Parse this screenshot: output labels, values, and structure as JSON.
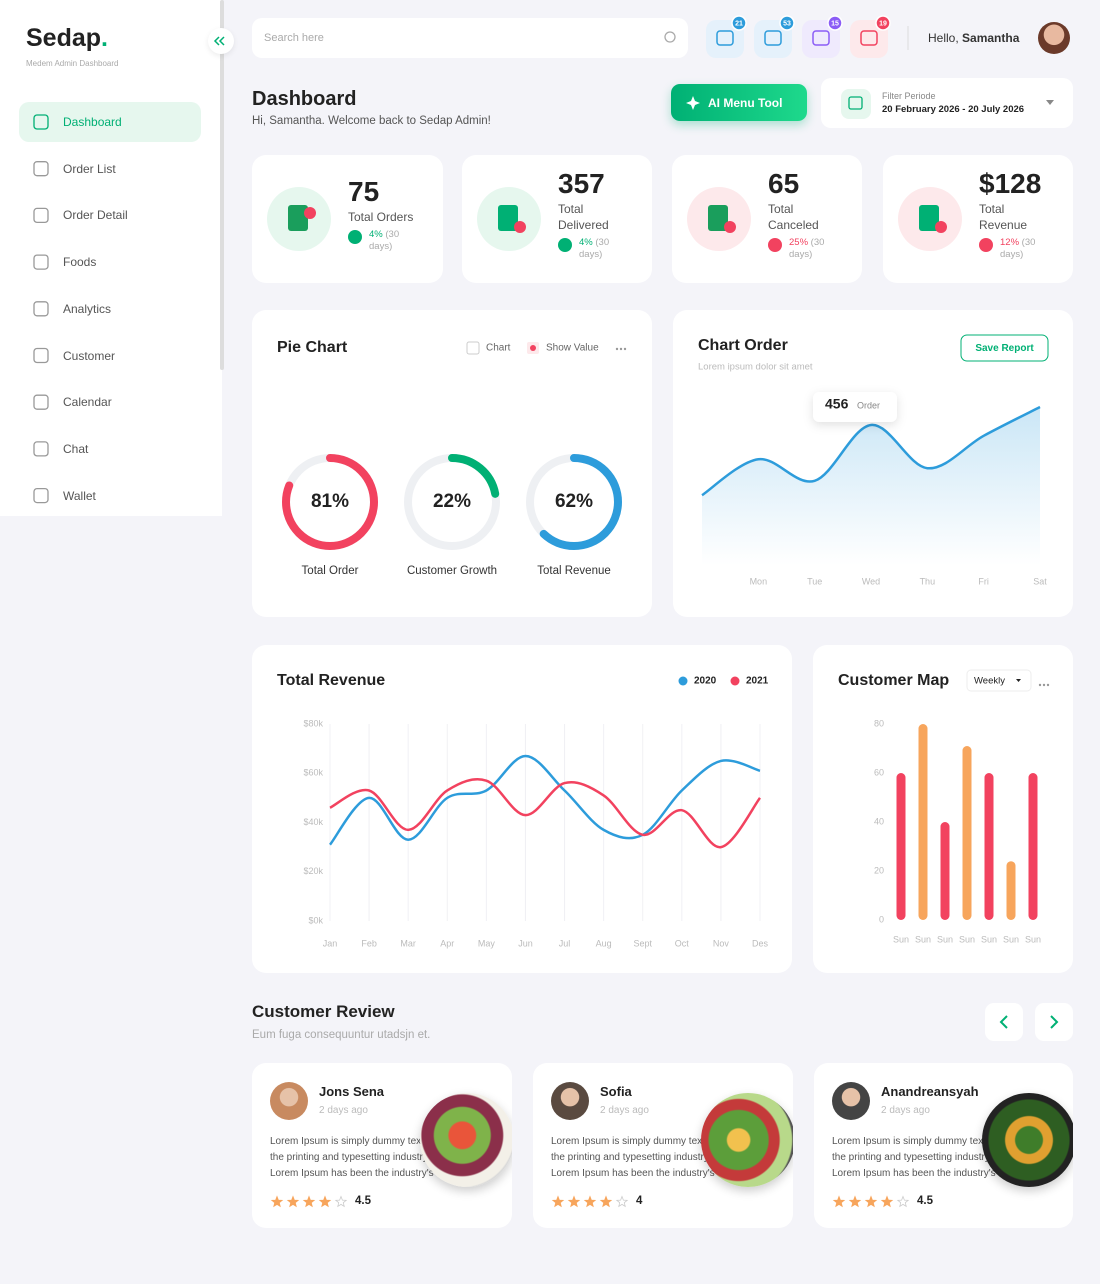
{
  "sidebar": {
    "brand": "Sedap",
    "brand_mark": ".",
    "tagline": "Medem Admin Dashboard",
    "nav": [
      "Dashboard",
      "Order List",
      "Order Detail",
      "Foods",
      "Analytics",
      "Customer",
      "Calendar",
      "Chat",
      "Wallet"
    ],
    "active": 0
  },
  "header": {
    "search_placeholder": "Search here",
    "badges": [
      21,
      53,
      15,
      19
    ],
    "greeting": "Hello,",
    "user": "Samantha"
  },
  "page": {
    "title": "Dashboard",
    "subtitle": "Hi, Samantha. Welcome back to Sedap Admin!",
    "button": "AI Menu Tool",
    "filter_label": "Filter Periode",
    "filter_value": "20 February 2026 - 20 July 2026"
  },
  "stats": [
    {
      "value": "75",
      "label": "Total Orders",
      "change": "4%",
      "period": "(30 days)",
      "trend": "up"
    },
    {
      "value": "357",
      "label": "Total Delivered",
      "change": "4%",
      "period": "(30 days)",
      "trend": "up"
    },
    {
      "value": "65",
      "label": "Total Canceled",
      "change": "25%",
      "period": "(30 days)",
      "trend": "down"
    },
    {
      "value": "$128",
      "label": "Total Revenue",
      "change": "12%",
      "period": "(30 days)",
      "trend": "down"
    }
  ],
  "chart_data": [
    {
      "type": "donut",
      "title": "Pie Chart",
      "legend": [
        "Chart",
        "Show Value"
      ],
      "categories": [
        "Total Order",
        "Customer Growth",
        "Total Revenue"
      ],
      "values": [
        81,
        22,
        62
      ],
      "value_labels": [
        "81%",
        "22%",
        "62%"
      ],
      "colors": [
        "#f2425f",
        "#00b074",
        "#2d9cdb"
      ]
    },
    {
      "type": "area",
      "title": "Chart Order",
      "subtitle": "Lorem ipsum dolor sit amet",
      "button": "Save Report",
      "categories": [
        null,
        "Mon",
        "Tue",
        "Wed",
        "Thu",
        "Fri",
        "Sat"
      ],
      "values": [
        36,
        56,
        44,
        75,
        51,
        69,
        85
      ],
      "ylim": [
        0,
        100
      ],
      "color": "#2d9cdb",
      "annotation": {
        "value": "456",
        "unit": "Order"
      }
    },
    {
      "type": "line",
      "title": "Total Revenue",
      "categories": [
        "Jan",
        "Feb",
        "Mar",
        "Apr",
        "May",
        "Jun",
        "Jul",
        "Aug",
        "Sept",
        "Oct",
        "Nov",
        "Des"
      ],
      "series": [
        {
          "name": "2020",
          "color": "#2d9cdb",
          "values": [
            31000,
            50000,
            33000,
            50000,
            53000,
            67000,
            53000,
            37000,
            35000,
            53000,
            65000,
            61000
          ]
        },
        {
          "name": "2021",
          "color": "#f2425f",
          "values": [
            46000,
            53000,
            37000,
            53000,
            57000,
            43000,
            56000,
            51000,
            35000,
            45000,
            30000,
            50000
          ]
        }
      ],
      "ylim": [
        0,
        80000
      ],
      "yticks": [
        {
          "value": 0,
          "label": "$0k"
        },
        {
          "value": 20000,
          "label": "$20k"
        },
        {
          "value": 40000,
          "label": "$40k"
        },
        {
          "value": 60000,
          "label": "$60k"
        },
        {
          "value": 80000,
          "label": "$80k"
        }
      ],
      "grid": true
    },
    {
      "type": "bar",
      "title": "Customer Map",
      "dropdown": "Weekly",
      "categories": [
        "Sun",
        "Sun",
        "Sun",
        "Sun",
        "Sun",
        "Sun",
        "Sun"
      ],
      "values": [
        60,
        80,
        40,
        71,
        60,
        24,
        60
      ],
      "colors": [
        "#f2425f",
        "#f7a55c",
        "#f2425f",
        "#f7a55c",
        "#f2425f",
        "#f7a55c",
        "#f2425f"
      ],
      "ylim": [
        0,
        80
      ],
      "yticks": [
        0,
        20,
        40,
        60,
        80
      ]
    }
  ],
  "reviews": {
    "title": "Customer Review",
    "subtitle": "Eum fuga consequuntur utadsjn et.",
    "items": [
      {
        "name": "Jons Sena",
        "time": "2 days ago",
        "text": "Lorem Ipsum is simply dummy text of the printing and typesetting industry. Lorem Ipsum has been the industry's standard",
        "rating": 4.5
      },
      {
        "name": "Sofia",
        "time": "2 days ago",
        "text": "Lorem Ipsum is simply dummy text of the printing and typesetting industry. Lorem Ipsum has been the industry's standard",
        "rating": 4
      },
      {
        "name": "Anandreansyah",
        "time": "2 days ago",
        "text": "Lorem Ipsum is simply dummy text of the printing and typesetting industry. Lorem Ipsum has been the industry's standard",
        "rating": 4.5
      }
    ]
  }
}
